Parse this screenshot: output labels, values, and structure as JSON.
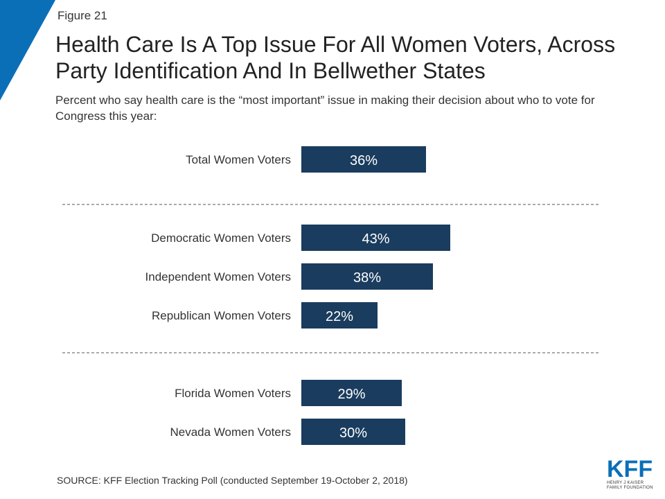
{
  "figure_label": "Figure 21",
  "colors": {
    "bar": "#1a3c5e",
    "accent": "#0b6fb8",
    "bar_label": "#ffffff"
  },
  "chart_data": {
    "type": "bar",
    "orientation": "horizontal",
    "title": "Health Care Is A Top Issue For All Women Voters, Across Party Identification And In Bellwether States",
    "subtitle": "Percent who say health care is the “most important” issue in making their decision about who to vote for Congress this year:",
    "categories": [
      "Total Women Voters",
      "Democratic Women Voters",
      "Independent Women Voters",
      "Republican Women Voters",
      "Florida Women Voters",
      "Nevada Women Voters"
    ],
    "values": [
      36,
      43,
      38,
      22,
      29,
      30
    ],
    "value_labels": [
      "36%",
      "43%",
      "38%",
      "22%",
      "29%",
      "30%"
    ],
    "groups": [
      [
        0
      ],
      [
        1,
        2,
        3
      ],
      [
        4,
        5
      ]
    ],
    "separators": "dashed",
    "xlim": [
      0,
      100
    ],
    "grid": false,
    "legend": "none"
  },
  "source": "SOURCE: KFF Election Tracking Poll (conducted September 19-October 2, 2018)",
  "logo": {
    "name": "KFF",
    "line1": "HENRY J KAISER",
    "line2": "FAMILY FOUNDATION"
  }
}
